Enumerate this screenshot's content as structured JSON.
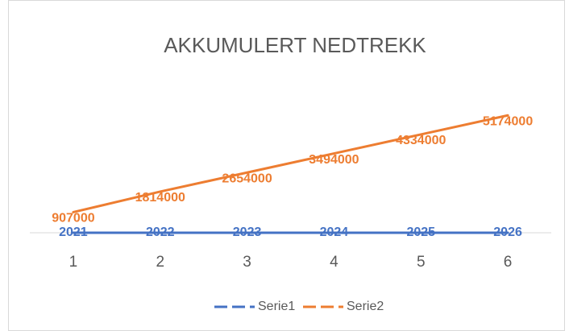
{
  "chart_data": {
    "type": "line",
    "title": "AKKUMULERT NEDTREKK",
    "categories": [
      "1",
      "2",
      "3",
      "4",
      "5",
      "6"
    ],
    "series": [
      {
        "name": "Serie1",
        "color": "#4472c4",
        "values": [
          2021,
          2022,
          2023,
          2024,
          2025,
          2026
        ]
      },
      {
        "name": "Serie2",
        "color": "#ed7d31",
        "values": [
          907000,
          1814000,
          2654000,
          3494000,
          4334000,
          5174000
        ]
      }
    ],
    "ylim": [
      0,
      6000000
    ],
    "legend": "bottom"
  }
}
